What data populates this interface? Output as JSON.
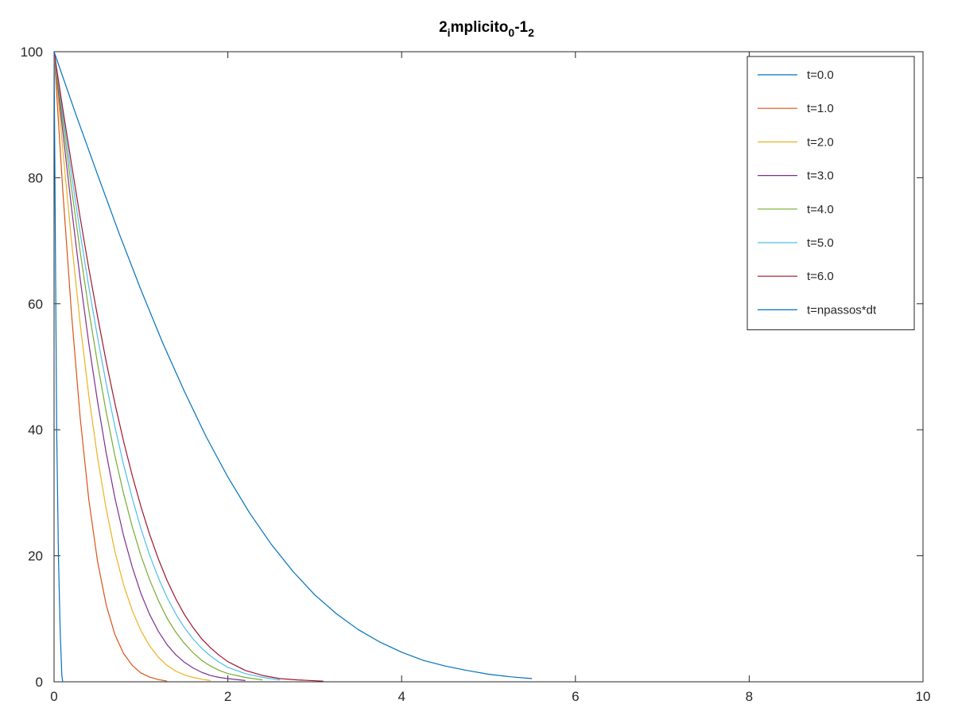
{
  "chart_data": {
    "type": "line",
    "title": {
      "segments": [
        {
          "text": "2",
          "baseline": "normal"
        },
        {
          "text": "i",
          "baseline": "sub"
        },
        {
          "text": "mplicito",
          "baseline": "normal"
        },
        {
          "text": "0",
          "baseline": "sub"
        },
        {
          "text": "-1",
          "baseline": "normal"
        },
        {
          "text": "2",
          "baseline": "sub"
        }
      ]
    },
    "xlabel": "",
    "ylabel": "",
    "xlim": [
      0,
      10
    ],
    "ylim": [
      0,
      100
    ],
    "xticks": [
      0,
      2,
      4,
      6,
      8,
      10
    ],
    "yticks": [
      0,
      20,
      40,
      60,
      80,
      100
    ],
    "xtick_labels": [
      "0",
      "2",
      "4",
      "6",
      "8",
      "10"
    ],
    "ytick_labels": [
      "0",
      "20",
      "40",
      "60",
      "80",
      "100"
    ],
    "grid": false,
    "legend_position": "top-right",
    "series": [
      {
        "name": "t=0.0",
        "color": "#0072bd",
        "x": [
          0,
          0.01,
          0.02,
          0.03,
          0.05,
          0.07,
          0.09,
          0.1
        ],
        "y": [
          100,
          80,
          60,
          40,
          20,
          8,
          1,
          0
        ]
      },
      {
        "name": "t=1.0",
        "color": "#d95319",
        "x": [
          0,
          0.1,
          0.2,
          0.3,
          0.4,
          0.5,
          0.6,
          0.7,
          0.8,
          0.9,
          1.0,
          1.1,
          1.2,
          1.3
        ],
        "y": [
          100,
          78.1,
          58.5,
          42.0,
          28.9,
          19.1,
          12.2,
          7.5,
          4.5,
          2.6,
          1.4,
          0.75,
          0.35,
          0.1
        ]
      },
      {
        "name": "t=2.0",
        "color": "#edb120",
        "x": [
          0,
          0.1,
          0.2,
          0.3,
          0.4,
          0.5,
          0.6,
          0.7,
          0.8,
          0.9,
          1.0,
          1.1,
          1.2,
          1.3,
          1.4,
          1.5,
          1.6,
          1.7,
          1.8
        ],
        "y": [
          100,
          84.6,
          70.0,
          56.9,
          45.4,
          35.6,
          27.4,
          20.7,
          15.4,
          11.3,
          8.1,
          5.7,
          3.9,
          2.6,
          1.7,
          1.1,
          0.7,
          0.4,
          0.2
        ]
      },
      {
        "name": "t=3.0",
        "color": "#7e2f8e",
        "x": [
          0,
          0.1,
          0.2,
          0.3,
          0.4,
          0.5,
          0.6,
          0.7,
          0.8,
          0.9,
          1.0,
          1.1,
          1.2,
          1.3,
          1.4,
          1.5,
          1.6,
          1.7,
          1.8,
          1.9,
          2.0,
          2.2
        ],
        "y": [
          100,
          87.4,
          75.3,
          64.0,
          53.7,
          44.5,
          36.3,
          29.2,
          23.2,
          18.2,
          14.0,
          10.7,
          8.0,
          5.9,
          4.3,
          3.1,
          2.2,
          1.5,
          1.0,
          0.7,
          0.5,
          0.2
        ]
      },
      {
        "name": "t=4.0",
        "color": "#77ac30",
        "x": [
          0,
          0.1,
          0.2,
          0.3,
          0.4,
          0.5,
          0.6,
          0.7,
          0.8,
          0.9,
          1.0,
          1.1,
          1.2,
          1.3,
          1.4,
          1.5,
          1.6,
          1.7,
          1.8,
          1.9,
          2.0,
          2.2,
          2.4
        ],
        "y": [
          100,
          89.0,
          78.4,
          68.3,
          59.0,
          50.5,
          42.8,
          35.9,
          29.9,
          24.6,
          20.0,
          16.2,
          12.9,
          10.1,
          7.9,
          6.1,
          4.6,
          3.4,
          2.5,
          1.8,
          1.3,
          0.7,
          0.3
        ]
      },
      {
        "name": "t=5.0",
        "color": "#4dbeee",
        "x": [
          0,
          0.1,
          0.2,
          0.3,
          0.4,
          0.5,
          0.6,
          0.7,
          0.8,
          0.9,
          1.0,
          1.1,
          1.2,
          1.3,
          1.4,
          1.5,
          1.6,
          1.7,
          1.8,
          1.9,
          2.0,
          2.2,
          2.4,
          2.6
        ],
        "y": [
          100,
          90.1,
          80.5,
          71.3,
          62.7,
          54.7,
          47.3,
          40.5,
          34.5,
          29.1,
          24.3,
          20.1,
          16.5,
          13.4,
          10.8,
          8.6,
          6.8,
          5.3,
          4.1,
          3.1,
          2.3,
          1.3,
          0.7,
          0.3
        ]
      },
      {
        "name": "t=6.0",
        "color": "#a2142f",
        "x": [
          0,
          0.1,
          0.2,
          0.3,
          0.4,
          0.5,
          0.6,
          0.7,
          0.8,
          0.9,
          1.0,
          1.1,
          1.2,
          1.3,
          1.4,
          1.5,
          1.6,
          1.7,
          1.8,
          1.9,
          2.0,
          2.2,
          2.4,
          2.6,
          2.8,
          3.1
        ],
        "y": [
          100,
          91.0,
          82.2,
          73.7,
          65.6,
          58.0,
          50.8,
          44.2,
          38.2,
          32.7,
          27.8,
          23.4,
          19.5,
          16.1,
          13.2,
          10.7,
          8.6,
          6.8,
          5.4,
          4.2,
          3.2,
          1.8,
          1.0,
          0.5,
          0.3,
          0.1
        ]
      },
      {
        "name": "t=npassos*dt",
        "color": "#0072bd",
        "x": [
          0,
          0.25,
          0.5,
          0.75,
          1.0,
          1.25,
          1.5,
          1.75,
          2.0,
          2.25,
          2.5,
          2.75,
          3.0,
          3.25,
          3.5,
          3.75,
          4.0,
          4.25,
          4.5,
          4.75,
          5.0,
          5.25,
          5.5
        ],
        "y": [
          100,
          90.1,
          80.5,
          71.1,
          62.2,
          53.8,
          46.1,
          38.9,
          32.5,
          26.8,
          21.8,
          17.5,
          13.8,
          10.8,
          8.3,
          6.3,
          4.7,
          3.4,
          2.5,
          1.8,
          1.2,
          0.8,
          0.5
        ]
      }
    ]
  }
}
